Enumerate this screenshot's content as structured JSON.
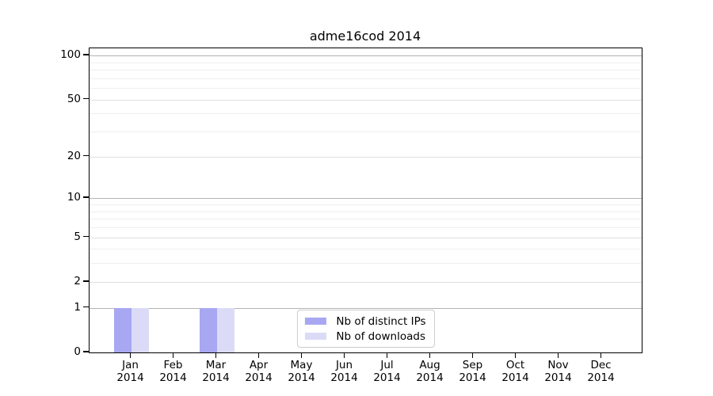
{
  "chart_data": {
    "type": "bar",
    "title": "adme16cod 2014",
    "x_axis": {
      "months": [
        "Jan",
        "Feb",
        "Mar",
        "Apr",
        "May",
        "Jun",
        "Jul",
        "Aug",
        "Sep",
        "Oct",
        "Nov",
        "Dec"
      ],
      "year": "2014"
    },
    "y_axis": {
      "scale": "log10(value+1)",
      "labeled_ticks": [
        0,
        1,
        2,
        5,
        10,
        20,
        50,
        100
      ],
      "major_grid_values": [
        1,
        10,
        100
      ],
      "minor_grid_values": [
        2,
        3,
        4,
        5,
        6,
        7,
        8,
        9,
        20,
        30,
        40,
        50,
        60,
        70,
        80,
        90
      ],
      "top_value": 112,
      "ylim": [
        0,
        112
      ]
    },
    "series": [
      {
        "name": "Nb of distinct IPs",
        "color": "#a7a7f2",
        "values": [
          1,
          0,
          1,
          0,
          0,
          0,
          0,
          0,
          0,
          0,
          0,
          0
        ]
      },
      {
        "name": "Nb of downloads",
        "color": "#dbdbf8",
        "values": [
          1,
          0,
          1,
          0,
          0,
          0,
          0,
          0,
          0,
          0,
          0,
          0
        ]
      }
    ],
    "legend": {
      "position": "inside-bottom-center",
      "entries": [
        "Nb of distinct IPs",
        "Nb of downloads"
      ]
    },
    "colors": {
      "major_grid": "#b3b3b3",
      "labeled_minor_grid": "#dfdfdf",
      "minor_grid": "#efefef",
      "spine": "#000000",
      "background": "#ffffff"
    }
  }
}
